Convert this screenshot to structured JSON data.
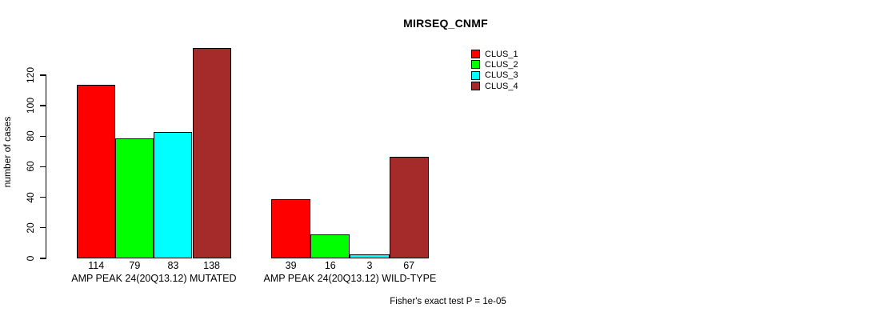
{
  "chart_data": {
    "type": "bar",
    "title": "MIRSEQ_CNMF",
    "ylabel": "number of cases",
    "annotation": "Fisher's exact test P = 1e-05",
    "categories": [
      "AMP PEAK 24(20Q13.12) MUTATED",
      "AMP PEAK 24(20Q13.12) WILD-TYPE"
    ],
    "series": [
      {
        "name": "CLUS_1",
        "color": "#FF0000",
        "values": [
          114,
          39
        ]
      },
      {
        "name": "CLUS_2",
        "color": "#00FF00",
        "values": [
          79,
          16
        ]
      },
      {
        "name": "CLUS_3",
        "color": "#00FFFF",
        "values": [
          83,
          3
        ]
      },
      {
        "name": "CLUS_4",
        "color": "#A52A2A",
        "values": [
          138,
          67
        ]
      }
    ],
    "value_labels": [
      [
        114,
        79,
        83,
        138
      ],
      [
        39,
        16,
        3,
        67
      ]
    ],
    "yticks": [
      0,
      20,
      40,
      60,
      80,
      100,
      120
    ],
    "ylim": [
      0,
      138
    ],
    "grid": false,
    "legend_position": "top-right",
    "bar_outline_color": "#000000",
    "text_color": "#000000",
    "background_color": "#FFFFFF"
  }
}
